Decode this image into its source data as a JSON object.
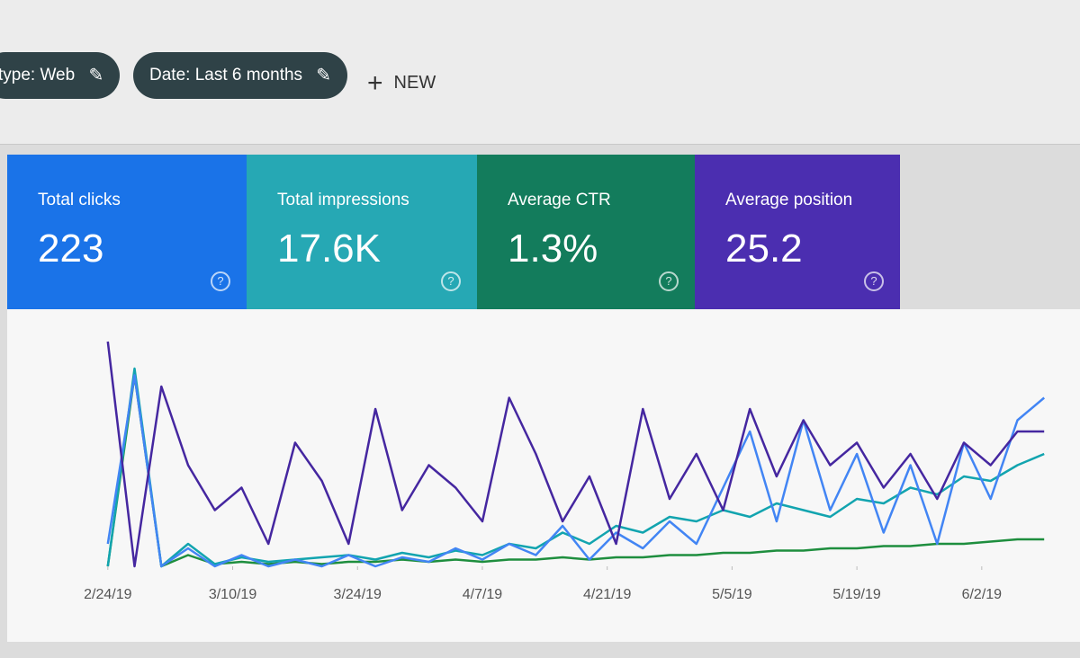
{
  "filters": [
    "type: Web",
    "Date: Last 6 months"
  ],
  "new_button": "NEW",
  "metrics": [
    {
      "label": "Total clicks",
      "value": "223"
    },
    {
      "label": "Total impressions",
      "value": "17.6K"
    },
    {
      "label": "Average CTR",
      "value": "1.3%"
    },
    {
      "label": "Average position",
      "value": "25.2"
    }
  ],
  "chart_data": {
    "type": "line",
    "x": [
      0,
      3,
      6,
      9,
      12,
      15,
      18,
      21,
      24,
      27,
      30,
      33,
      36,
      39,
      42,
      45,
      48,
      51,
      54,
      57,
      60,
      63,
      66,
      69,
      72,
      75,
      78,
      81,
      84,
      87,
      90,
      93,
      96,
      99,
      102,
      105
    ],
    "xlim": [
      -2,
      107
    ],
    "ylim": [
      0,
      100
    ],
    "xticks": [
      {
        "value": 0,
        "label": "2/24/19"
      },
      {
        "value": 14,
        "label": "3/10/19"
      },
      {
        "value": 28,
        "label": "3/24/19"
      },
      {
        "value": 42,
        "label": "4/7/19"
      },
      {
        "value": 56,
        "label": "4/21/19"
      },
      {
        "value": 70,
        "label": "5/5/19"
      },
      {
        "value": 84,
        "label": "5/19/19"
      },
      {
        "value": 98,
        "label": "6/2/19"
      }
    ],
    "series": [
      {
        "color": "#4527a0",
        "values": [
          100,
          0,
          80,
          45,
          25,
          35,
          10,
          55,
          38,
          10,
          70,
          25,
          45,
          35,
          20,
          75,
          50,
          20,
          40,
          10,
          70,
          30,
          50,
          25,
          70,
          40,
          65,
          45,
          55,
          35,
          50,
          30,
          55,
          45,
          60,
          60
        ]
      },
      {
        "color": "#4285f4",
        "values": [
          10,
          85,
          0,
          8,
          0,
          5,
          0,
          3,
          0,
          5,
          0,
          4,
          2,
          8,
          3,
          10,
          5,
          18,
          3,
          15,
          8,
          20,
          10,
          35,
          60,
          20,
          65,
          25,
          50,
          15,
          45,
          10,
          55,
          30,
          65,
          75
        ]
      },
      {
        "color": "#12a4af",
        "values": [
          0,
          88,
          0,
          10,
          1,
          4,
          2,
          3,
          4,
          5,
          3,
          6,
          4,
          7,
          5,
          10,
          8,
          15,
          10,
          18,
          15,
          22,
          20,
          25,
          22,
          28,
          25,
          22,
          30,
          28,
          35,
          32,
          40,
          38,
          45,
          50
        ]
      },
      {
        "color": "#1e8e3e",
        "values": [
          0,
          85,
          0,
          5,
          1,
          2,
          1,
          2,
          1,
          2,
          2,
          3,
          2,
          3,
          2,
          3,
          3,
          4,
          3,
          4,
          4,
          5,
          5,
          6,
          6,
          7,
          7,
          8,
          8,
          9,
          9,
          10,
          10,
          11,
          12,
          12
        ]
      }
    ]
  }
}
